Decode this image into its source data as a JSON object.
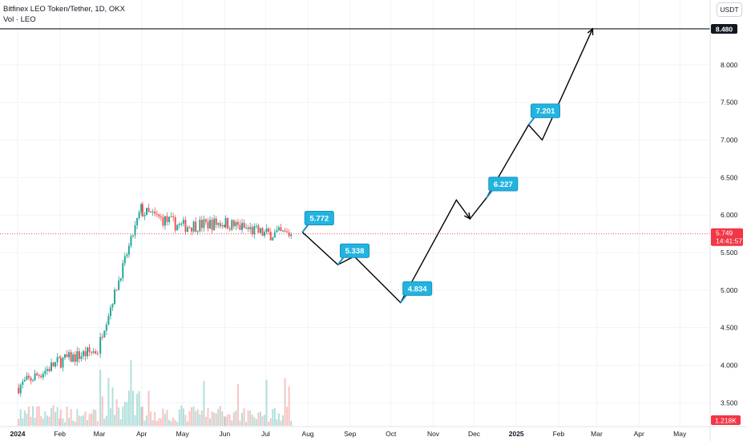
{
  "legend": {
    "symbol": "Bitfinex LEO Token/Tether, 1D, OKX",
    "volume": "Vol · LEO"
  },
  "currency_button": "USDT",
  "price_scale": {
    "ticks": [
      "8.000",
      "7.500",
      "7.000",
      "6.500",
      "6.000",
      "5.500",
      "5.000",
      "4.500",
      "4.000",
      "3.500"
    ],
    "target_label": "8.480",
    "last_price_label": "5.749",
    "countdown_label": "14:41:57",
    "volume_label": "1.218K"
  },
  "time_axis": [
    "2024",
    "Feb",
    "Mar",
    "Apr",
    "May",
    "Jun",
    "Jul",
    "Aug",
    "Sep",
    "Oct",
    "Nov",
    "Dec",
    "2025",
    "Feb",
    "Mar",
    "Apr",
    "May"
  ],
  "colors": {
    "up": "#26a69a",
    "down": "#ef5350",
    "callout": "#22b4e0",
    "callout_border": "#1a8fc0",
    "last_price": "#f23645",
    "path": "#000000"
  },
  "chart_data": {
    "type": "candlestick",
    "title": "Bitfinex LEO Token/Tether, 1D, OKX",
    "yrange": [
      3.25,
      8.55
    ],
    "last_price": 5.749,
    "target_level": 8.48,
    "trend": [
      {
        "month": "Jan 2024",
        "start": 3.7,
        "end": 4.05
      },
      {
        "month": "Feb 2024",
        "start": 4.05,
        "end": 4.2
      },
      {
        "month": "Mar 2024",
        "start": 4.25,
        "end": 6.1
      },
      {
        "month": "Apr 2024",
        "start": 6.05,
        "end": 5.85
      },
      {
        "month": "May 2024",
        "start": 5.85,
        "end": 5.9
      },
      {
        "month": "Jun 2024",
        "start": 5.9,
        "end": 5.75
      },
      {
        "month": "Jul 2024",
        "start": 5.75,
        "end": 5.749
      }
    ],
    "projection": {
      "path": [
        {
          "date": "2024-07-28",
          "price": 5.772
        },
        {
          "date": "2024-08-23",
          "price": 5.338
        },
        {
          "date": "2024-09-04",
          "price": 5.45
        },
        {
          "date": "2024-10-08",
          "price": 4.834
        },
        {
          "date": "2024-11-18",
          "price": 6.2
        },
        {
          "date": "2024-11-28",
          "price": 5.95
        },
        {
          "date": "2024-12-10",
          "price": 6.227
        },
        {
          "date": "2025-01-10",
          "price": 7.201
        },
        {
          "date": "2025-01-20",
          "price": 7.0
        },
        {
          "date": "2025-02-26",
          "price": 8.48
        }
      ],
      "callouts": [
        {
          "label": "5.772",
          "date": "2024-07-28",
          "price": 5.772
        },
        {
          "label": "5.338",
          "date": "2024-08-23",
          "price": 5.338
        },
        {
          "label": "4.834",
          "date": "2024-10-08",
          "price": 4.834
        },
        {
          "label": "6.227",
          "date": "2024-12-10",
          "price": 6.227
        },
        {
          "label": "7.201",
          "date": "2025-01-10",
          "price": 7.201
        }
      ]
    }
  }
}
